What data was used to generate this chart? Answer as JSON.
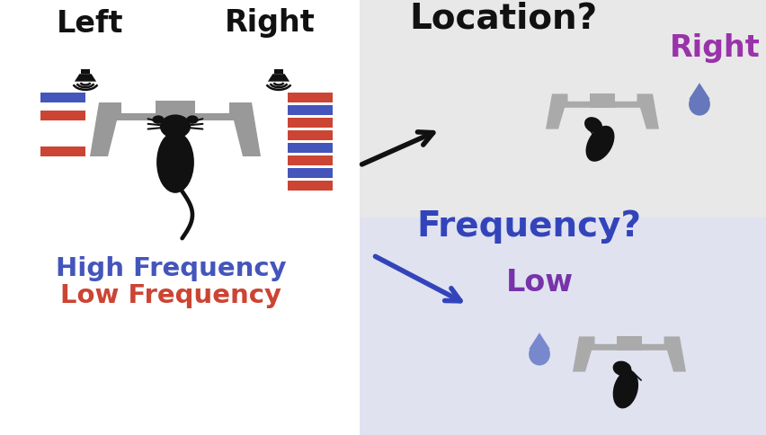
{
  "left_panel_bg": "#ffffff",
  "right_top_bg": "#e8e8e8",
  "right_bottom_bg": "#e0e2f0",
  "left_label": "Left",
  "right_label": "Right",
  "location_q": "Location?",
  "frequency_q": "Frequency?",
  "right_answer": "Right",
  "low_answer": "Low",
  "high_freq_label": "High Frequency",
  "low_freq_label": "Low Frequency",
  "blue_color": "#4455bb",
  "red_color": "#cc4433",
  "purple_color": "#9933aa",
  "dark_purple": "#7733aa",
  "freq_q_color": "#3344bb",
  "gray_color": "#999999",
  "black": "#111111",
  "drop_color": "#6677bb",
  "drop_color2": "#7788cc"
}
